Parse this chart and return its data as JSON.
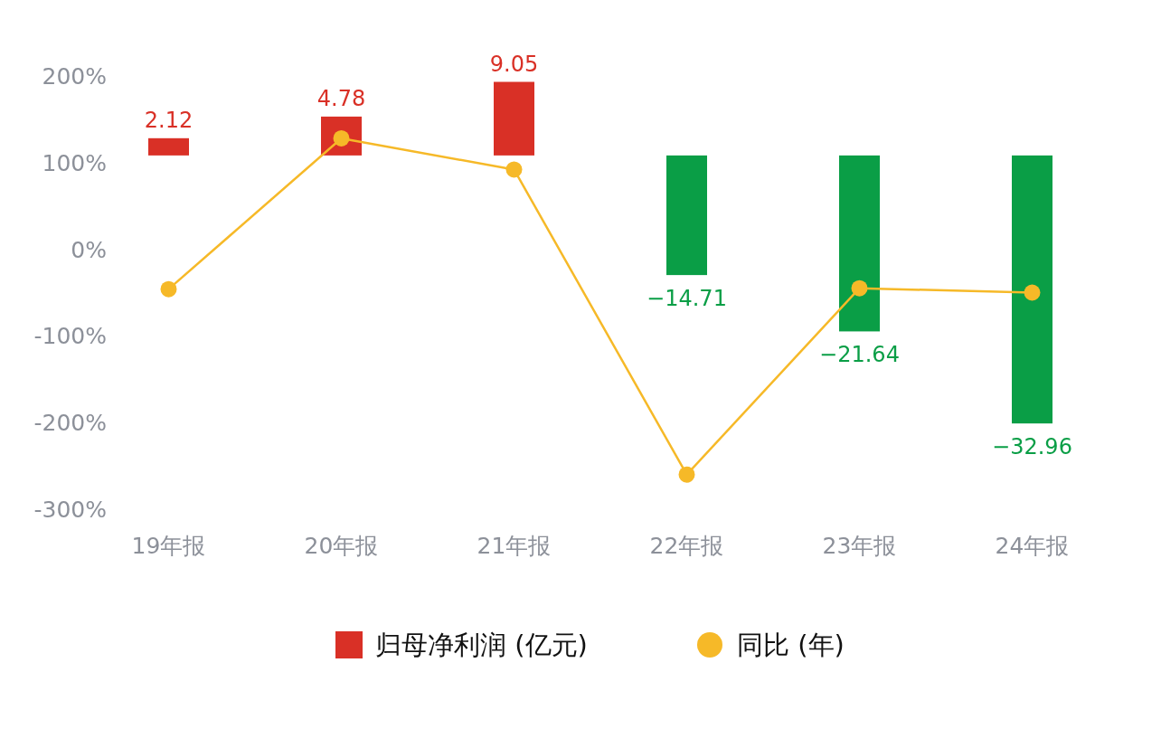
{
  "chart_data": {
    "type": "bar",
    "categories": [
      "19年报",
      "20年报",
      "21年报",
      "22年报",
      "23年报",
      "24年报"
    ],
    "series": [
      {
        "name": "归母净利润 (亿元)",
        "axis": "y2",
        "color": "#d93026",
        "colors": [
          "#d93026",
          "#d93026",
          "#d93026",
          "#0a9e46",
          "#0a9e46",
          "#0a9e46"
        ],
        "values": [
          2.12,
          4.78,
          9.05,
          -14.71,
          -21.64,
          -32.96
        ],
        "value_labels": [
          "2.12",
          "4.78",
          "9.05",
          "−14.71",
          "−21.64",
          "−32.96"
        ]
      },
      {
        "name": "同比 (年)",
        "type": "line",
        "color": "#f6b928",
        "values": [
          -46,
          128,
          92,
          -260,
          -45,
          -50
        ]
      }
    ],
    "ylim": [
      -300,
      200
    ],
    "yticks": [
      {
        "value": -300,
        "label": "-300%"
      },
      {
        "value": -200,
        "label": "-200%"
      },
      {
        "value": -100,
        "label": "-100%"
      },
      {
        "value": 0,
        "label": "0%"
      },
      {
        "value": 100,
        "label": "100%"
      },
      {
        "value": 200,
        "label": "200%"
      }
    ],
    "legend": "bottom",
    "marker": "circle",
    "grid": false
  }
}
